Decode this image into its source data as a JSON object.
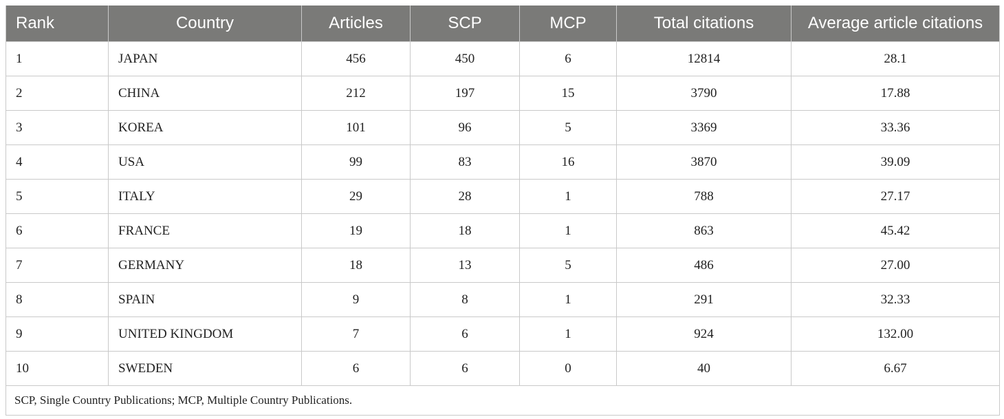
{
  "table": {
    "headers": [
      "Rank",
      "Country",
      "Articles",
      "SCP",
      "MCP",
      "Total citations",
      "Average article citations"
    ],
    "rows": [
      [
        "1",
        "JAPAN",
        "456",
        "450",
        "6",
        "12814",
        "28.1"
      ],
      [
        "2",
        "CHINA",
        "212",
        "197",
        "15",
        "3790",
        "17.88"
      ],
      [
        "3",
        "KOREA",
        "101",
        "96",
        "5",
        "3369",
        "33.36"
      ],
      [
        "4",
        "USA",
        "99",
        "83",
        "16",
        "3870",
        "39.09"
      ],
      [
        "5",
        "ITALY",
        "29",
        "28",
        "1",
        "788",
        "27.17"
      ],
      [
        "6",
        "FRANCE",
        "19",
        "18",
        "1",
        "863",
        "45.42"
      ],
      [
        "7",
        "GERMANY",
        "18",
        "13",
        "5",
        "486",
        "27.00"
      ],
      [
        "8",
        "SPAIN",
        "9",
        "8",
        "1",
        "291",
        "32.33"
      ],
      [
        "9",
        "UNITED KINGDOM",
        "7",
        "6",
        "1",
        "924",
        "132.00"
      ],
      [
        "10",
        "SWEDEN",
        "6",
        "6",
        "0",
        "40",
        "6.67"
      ]
    ],
    "footnote": "SCP, Single Country Publications; MCP, Multiple Country Publications."
  },
  "colors": {
    "header_bg": "#7a7a78",
    "header_text": "#ffffff",
    "grid_line": "#c9c9c9",
    "body_text": "#222222"
  }
}
